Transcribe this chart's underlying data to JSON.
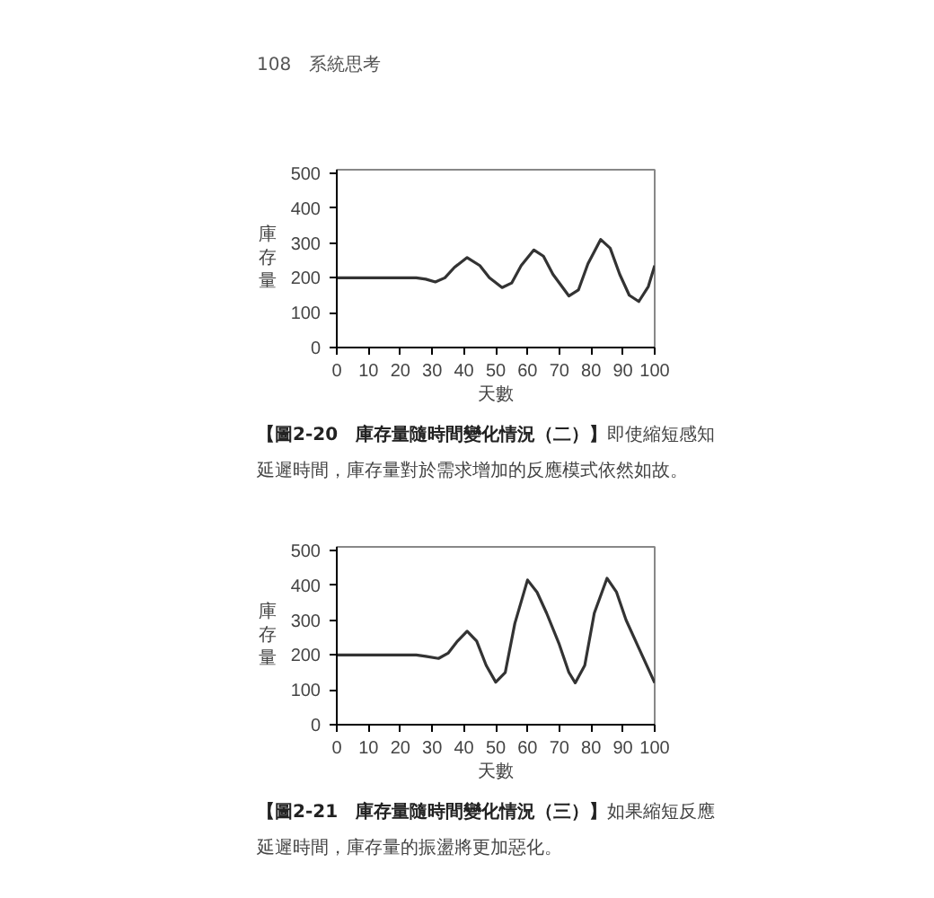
{
  "chart_data": [
    {
      "type": "line",
      "title": "【圖2-20　庫存量隨時間變化情況（二）】",
      "annotations": [
        "108　系統思考",
        "即使縮短感知延遲時間，庫存量對於需求增加的反應模式依然如故。"
      ],
      "xlabel": "天數",
      "ylabel": "庫存量",
      "xlim": [
        0,
        100
      ],
      "ylim": [
        0,
        510
      ],
      "xticks": [
        0,
        10,
        20,
        30,
        40,
        50,
        60,
        70,
        80,
        90,
        100
      ],
      "yticks": [
        0,
        100,
        200,
        300,
        400,
        500
      ],
      "grid": false,
      "marker": "none",
      "line_style": "solid",
      "series": [
        {
          "color": "#333333",
          "x": [
            0,
            10,
            20,
            25,
            28,
            31,
            34,
            37,
            41,
            45,
            48,
            52,
            55,
            58,
            62,
            65,
            68,
            73,
            76,
            79,
            83,
            86,
            89,
            92,
            95,
            98,
            100
          ],
          "values": [
            200,
            200,
            200,
            200,
            196,
            188,
            200,
            230,
            258,
            235,
            200,
            172,
            185,
            235,
            280,
            262,
            210,
            148,
            165,
            240,
            310,
            285,
            210,
            150,
            132,
            175,
            235
          ]
        }
      ]
    },
    {
      "type": "line",
      "title": "【圖2-21　庫存量隨時間變化情況（三）】",
      "annotations": [
        "如果縮短反應延遲時間，庫存量的振盪將更加惡化。"
      ],
      "xlabel": "天數",
      "ylabel": "庫存量",
      "xlim": [
        0,
        100
      ],
      "ylim": [
        0,
        510
      ],
      "xticks": [
        0,
        10,
        20,
        30,
        40,
        50,
        60,
        70,
        80,
        90,
        100
      ],
      "yticks": [
        0,
        100,
        200,
        300,
        400,
        500
      ],
      "grid": false,
      "marker": "none",
      "line_style": "solid",
      "series": [
        {
          "color": "#333333",
          "x": [
            0,
            10,
            20,
            25,
            28,
            32,
            35,
            38,
            41,
            44,
            47,
            50,
            53,
            56,
            60,
            63,
            66,
            70,
            73,
            75,
            78,
            81,
            85,
            88,
            91,
            95,
            100
          ],
          "values": [
            200,
            200,
            200,
            200,
            196,
            190,
            205,
            240,
            268,
            240,
            170,
            122,
            150,
            290,
            415,
            380,
            320,
            230,
            150,
            120,
            170,
            320,
            420,
            380,
            300,
            220,
            120
          ]
        }
      ]
    }
  ]
}
